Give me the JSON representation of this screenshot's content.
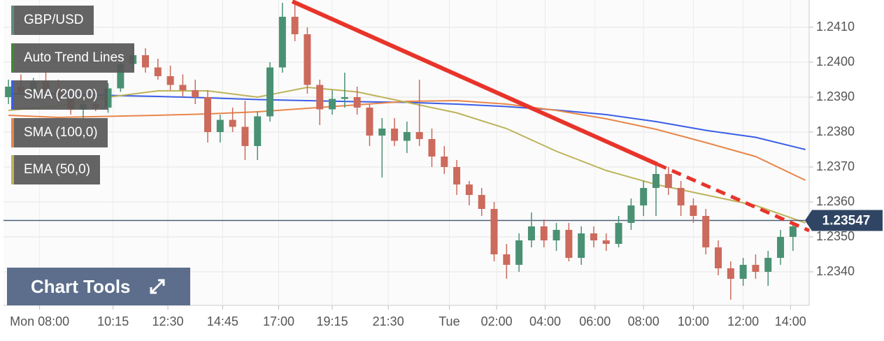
{
  "chart_data": {
    "type": "candlestick",
    "candles": {
      "name": "GBP/USD",
      "legend_color": "#5e8c83",
      "up_color": "#4a9174",
      "down_color": "#cc6a5c",
      "x": [
        0,
        1,
        2,
        3,
        4,
        5,
        6,
        7,
        8,
        9,
        10,
        11,
        12,
        13,
        14,
        15,
        16,
        17,
        18,
        19,
        20,
        21,
        22,
        23,
        24,
        25,
        26,
        27,
        28,
        29,
        30,
        31,
        32,
        33,
        34,
        35,
        36,
        37,
        38,
        39,
        40,
        41,
        42,
        43,
        44,
        45,
        46,
        47,
        48,
        49,
        50,
        51,
        52,
        53,
        54,
        55,
        56,
        57,
        58,
        59,
        60,
        61,
        62,
        63
      ],
      "open": [
        1.239,
        1.2393,
        1.23915,
        1.23945,
        1.2392,
        1.23895,
        1.23865,
        1.2388,
        1.2387,
        1.23925,
        1.23995,
        1.2402,
        1.23985,
        1.2396,
        1.23935,
        1.2392,
        1.239,
        1.238,
        1.23835,
        1.23815,
        1.2376,
        1.23845,
        1.23985,
        1.2413,
        1.2408,
        1.23935,
        1.23865,
        1.23895,
        1.239,
        1.2387,
        1.2379,
        1.2381,
        1.23775,
        1.238,
        1.2378,
        1.2373,
        1.237,
        1.2365,
        1.2362,
        1.2358,
        1.2345,
        1.2342,
        1.2349,
        1.2353,
        1.2349,
        1.2352,
        1.2344,
        1.2351,
        1.2349,
        1.2348,
        1.2354,
        1.2359,
        1.2364,
        1.2368,
        1.2364,
        1.2359,
        1.2356,
        1.2347,
        1.2341,
        1.2338,
        1.2342,
        1.234,
        1.2344,
        1.235
      ],
      "high": [
        1.2395,
        1.23965,
        1.23955,
        1.23975,
        1.2395,
        1.23915,
        1.239,
        1.2391,
        1.2394,
        1.2401,
        1.2405,
        1.2404,
        1.2401,
        1.2399,
        1.23965,
        1.2395,
        1.2392,
        1.2385,
        1.2387,
        1.2389,
        1.2386,
        1.24,
        1.2417,
        1.24175,
        1.241,
        1.2395,
        1.2392,
        1.2397,
        1.2393,
        1.2388,
        1.2384,
        1.2384,
        1.2383,
        1.2395,
        1.2381,
        1.2376,
        1.2372,
        1.2366,
        1.2364,
        1.236,
        1.2348,
        1.2351,
        1.2357,
        1.2355,
        1.2354,
        1.2354,
        1.2353,
        1.2353,
        1.2351,
        1.2356,
        1.2361,
        1.2366,
        1.2371,
        1.237,
        1.2366,
        1.2361,
        1.2358,
        1.2349,
        1.2343,
        1.2344,
        1.2345,
        1.2346,
        1.2352,
        1.2354
      ],
      "low": [
        1.2388,
        1.23905,
        1.2389,
        1.2391,
        1.2388,
        1.2385,
        1.2384,
        1.2386,
        1.23855,
        1.23915,
        1.2398,
        1.2397,
        1.2395,
        1.2392,
        1.239,
        1.2388,
        1.2377,
        1.2377,
        1.238,
        1.2372,
        1.2372,
        1.2383,
        1.2397,
        1.2406,
        1.2391,
        1.2382,
        1.2385,
        1.2387,
        1.2385,
        1.2376,
        1.2367,
        1.2376,
        1.2374,
        1.2376,
        1.237,
        1.2368,
        1.2362,
        1.2359,
        1.2356,
        1.2343,
        1.2338,
        1.234,
        1.2347,
        1.2347,
        1.2346,
        1.2343,
        1.2342,
        1.2347,
        1.2346,
        1.2347,
        1.2352,
        1.2356,
        1.2356,
        1.2362,
        1.2356,
        1.2354,
        1.2345,
        1.2339,
        1.2332,
        1.2336,
        1.2338,
        1.2336,
        1.2342,
        1.2346
      ],
      "close": [
        1.2393,
        1.23915,
        1.23945,
        1.2392,
        1.23895,
        1.23865,
        1.2388,
        1.2387,
        1.23925,
        1.23995,
        1.2402,
        1.23985,
        1.2396,
        1.23935,
        1.2392,
        1.239,
        1.238,
        1.23835,
        1.23815,
        1.2376,
        1.23845,
        1.23985,
        1.2413,
        1.2408,
        1.23935,
        1.23865,
        1.23895,
        1.239,
        1.2387,
        1.2379,
        1.2381,
        1.23775,
        1.238,
        1.2378,
        1.2373,
        1.237,
        1.2365,
        1.2362,
        1.2358,
        1.2345,
        1.2342,
        1.2349,
        1.2353,
        1.2349,
        1.2352,
        1.2344,
        1.2351,
        1.2349,
        1.2348,
        1.2354,
        1.2359,
        1.2364,
        1.2368,
        1.2364,
        1.2359,
        1.2356,
        1.2347,
        1.2341,
        1.2338,
        1.2342,
        1.234,
        1.2344,
        1.235,
        1.2353
      ]
    },
    "trend_line": {
      "name": "Auto Trend Lines",
      "color": "#e8342a",
      "legend_color": "#3d8b2f",
      "x": [
        22.8,
        52.1
      ],
      "values": [
        1.24174,
        1.23708
      ],
      "projection_x": [
        52.1,
        64.3
      ],
      "projection_values": [
        1.23708,
        1.23518
      ]
    },
    "series": [
      {
        "name": "SMA (200,0)",
        "color": "#3a5ee8",
        "x": [
          0,
          4,
          8,
          12,
          16,
          20,
          24,
          28,
          32,
          36,
          40,
          44,
          48,
          52,
          56,
          60,
          64
        ],
        "values": [
          1.2391,
          1.2391,
          1.23905,
          1.23902,
          1.23898,
          1.23893,
          1.2389,
          1.23887,
          1.23885,
          1.2388,
          1.23873,
          1.23863,
          1.2385,
          1.2383,
          1.23805,
          1.23785,
          1.2375
        ]
      },
      {
        "name": "SMA (100,0)",
        "color": "#e8864a",
        "x": [
          0,
          4,
          8,
          12,
          16,
          20,
          24,
          28,
          32,
          36,
          40,
          44,
          48,
          52,
          56,
          60,
          64
        ],
        "values": [
          1.23848,
          1.23842,
          1.23845,
          1.23848,
          1.23852,
          1.23858,
          1.23868,
          1.23878,
          1.23888,
          1.2389,
          1.2388,
          1.23862,
          1.23838,
          1.23808,
          1.2377,
          1.2373,
          1.23662
        ]
      },
      {
        "name": "EMA (50,0)",
        "color": "#bdb35a",
        "x": [
          0,
          4,
          8,
          12,
          16,
          20,
          24,
          28,
          32,
          36,
          40,
          44,
          48,
          52,
          56,
          60,
          64
        ],
        "values": [
          1.23862,
          1.23875,
          1.239,
          1.23918,
          1.23918,
          1.239,
          1.23928,
          1.23915,
          1.23885,
          1.23855,
          1.2381,
          1.23745,
          1.2369,
          1.2365,
          1.2362,
          1.2359,
          1.2354
        ]
      }
    ],
    "price_line": {
      "value": 1.23547,
      "label": "1.23547",
      "color": "#2f4563"
    },
    "xlim": [
      -0.4,
      64.3
    ],
    "ylim": [
      1.23304,
      1.24178
    ],
    "xticks": [
      {
        "value": 2.5,
        "label": "Mon 08:00"
      },
      {
        "value": 8.4,
        "label": "10:15"
      },
      {
        "value": 12.8,
        "label": "12:30"
      },
      {
        "value": 17.2,
        "label": "14:45"
      },
      {
        "value": 21.7,
        "label": "17:00"
      },
      {
        "value": 26,
        "label": "19:15"
      },
      {
        "value": 30.5,
        "label": "21:30"
      },
      {
        "value": 35.4,
        "label": "Tue"
      },
      {
        "value": 39.2,
        "label": "02:00"
      },
      {
        "value": 43.1,
        "label": "04:00"
      },
      {
        "value": 47.1,
        "label": "06:00"
      },
      {
        "value": 51,
        "label": "08:00"
      },
      {
        "value": 55,
        "label": "10:00"
      },
      {
        "value": 59,
        "label": "12:00"
      },
      {
        "value": 62.8,
        "label": "14:00"
      }
    ],
    "yticks": [
      {
        "value": 1.234,
        "label": "1.2340"
      },
      {
        "value": 1.235,
        "label": "1.2350"
      },
      {
        "value": 1.236,
        "label": "1.2360"
      },
      {
        "value": 1.237,
        "label": "1.2370"
      },
      {
        "value": 1.238,
        "label": "1.2380"
      },
      {
        "value": 1.239,
        "label": "1.2390"
      },
      {
        "value": 1.24,
        "label": "1.2400"
      },
      {
        "value": 1.241,
        "label": "1.2410"
      }
    ],
    "grid": true
  },
  "tools_button": {
    "label": "Chart Tools"
  }
}
